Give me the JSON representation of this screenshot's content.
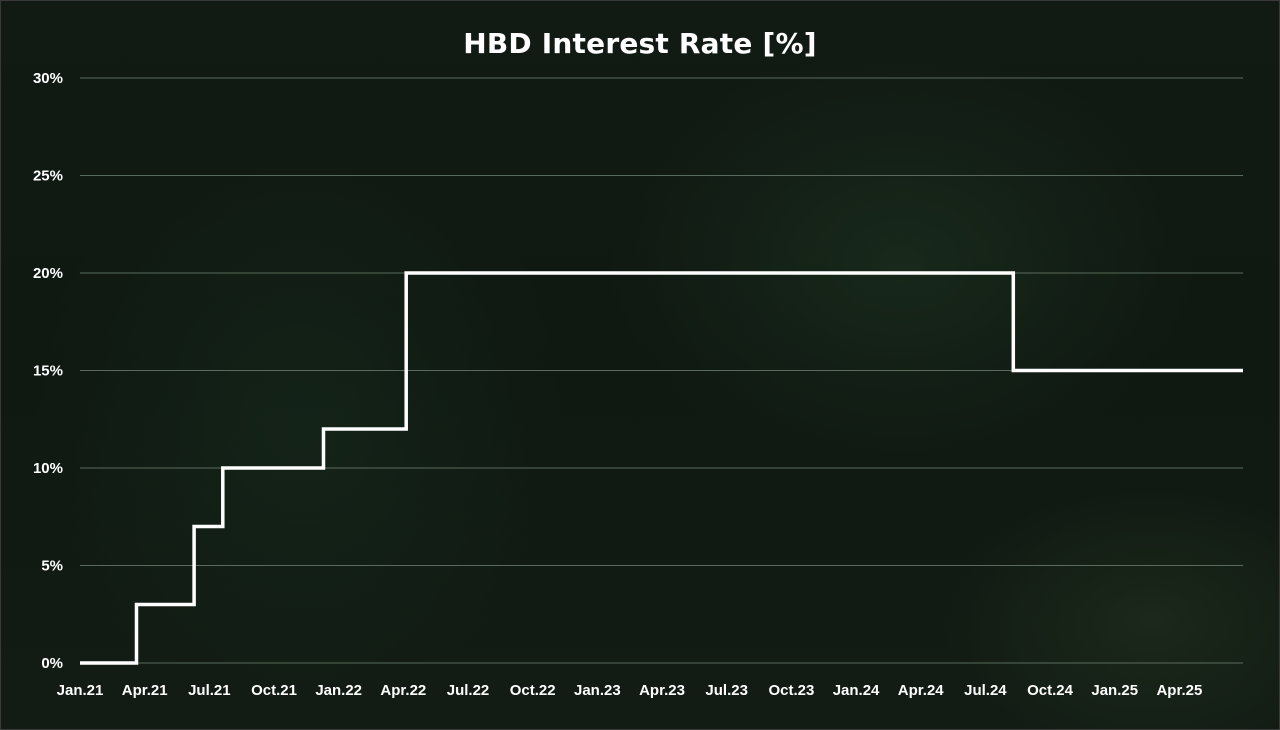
{
  "chart_data": {
    "type": "line",
    "step": true,
    "title": "HBD Interest Rate [%]",
    "xlabel": "",
    "ylabel": "",
    "ylim": [
      0,
      30
    ],
    "y_ticks": [
      "0%",
      "5%",
      "10%",
      "15%",
      "20%",
      "25%",
      "30%"
    ],
    "y_tick_values": [
      0,
      5,
      10,
      15,
      20,
      25,
      30
    ],
    "x_ticks": [
      "Jan.21",
      "Apr.21",
      "Jul.21",
      "Oct.21",
      "Jan.22",
      "Apr.22",
      "Jul.22",
      "Oct.22",
      "Jan.23",
      "Apr.23",
      "Jul.23",
      "Oct.23",
      "Jan.24",
      "Apr.24",
      "Jul.24",
      "Oct.24",
      "Jan.25",
      "Apr.25"
    ],
    "x_start": "2021-01",
    "x_end": "2025-06-30",
    "grid": true,
    "series": [
      {
        "values": [
          {
            "x": "2021-01-01",
            "y": 0
          },
          {
            "x": "2021-03-20",
            "y": 3
          },
          {
            "x": "2021-06-10",
            "y": 7
          },
          {
            "x": "2021-07-20",
            "y": 10
          },
          {
            "x": "2021-12-10",
            "y": 12
          },
          {
            "x": "2022-04-05",
            "y": 20
          },
          {
            "x": "2024-08-10",
            "y": 15
          },
          {
            "x": "2025-06-30",
            "y": 15
          }
        ]
      }
    ],
    "colors": {
      "line": "#ffffff",
      "grid": "#5a6a5c",
      "text": "#ffffff"
    }
  }
}
